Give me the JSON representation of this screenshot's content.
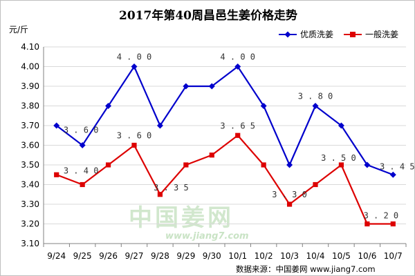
{
  "chart_data": {
    "type": "line",
    "title": "2017年第40周昌邑生姜价格走势",
    "ylabel": "元/斤",
    "ylim": [
      3.1,
      4.1
    ],
    "ystep": 0.1,
    "ytick_labels": [
      "3.10",
      "3.20",
      "3.30",
      "3.40",
      "3.50",
      "3.60",
      "3.70",
      "3.80",
      "3.90",
      "4.00",
      "4.10"
    ],
    "categories": [
      "9/24",
      "9/25",
      "9/26",
      "9/27",
      "9/28",
      "9/29",
      "9/30",
      "10/1",
      "10/2",
      "10/3",
      "10/4",
      "10/5",
      "10/6",
      "10/7"
    ],
    "grid": "horizontal",
    "legend_position": "top-right",
    "series": [
      {
        "name": "优质洗姜",
        "color": "#0000cc",
        "marker": "diamond",
        "values": [
          3.7,
          3.6,
          3.8,
          4.0,
          3.7,
          3.9,
          3.9,
          4.0,
          3.8,
          3.5,
          3.8,
          3.7,
          3.5,
          3.45
        ],
        "data_labels": [
          {
            "index": 1,
            "text": "3.60"
          },
          {
            "index": 3,
            "text": "4.00"
          },
          {
            "index": 7,
            "text": "4.00"
          },
          {
            "index": 10,
            "text": "3.80"
          },
          {
            "index": 13,
            "text": "3.45"
          }
        ]
      },
      {
        "name": "一般洗姜",
        "color": "#dd0000",
        "marker": "square",
        "values": [
          3.45,
          3.4,
          3.5,
          3.6,
          3.35,
          3.5,
          3.55,
          3.65,
          3.5,
          3.3,
          3.4,
          3.5,
          3.2,
          3.2
        ],
        "data_labels": [
          {
            "index": 1,
            "text": "3.40"
          },
          {
            "index": 3,
            "text": "3.60"
          },
          {
            "index": 4,
            "text": "3.35"
          },
          {
            "index": 7,
            "text": "3.65"
          },
          {
            "index": 9,
            "text": "3.30"
          },
          {
            "index": 11,
            "text": "3.50"
          },
          {
            "index": 12,
            "text": "3.20"
          }
        ]
      }
    ],
    "source": "数据来源：中国姜网 www.jiang7.com",
    "watermark": {
      "text": "中国姜网",
      "url": "www.jiang7.com"
    }
  }
}
